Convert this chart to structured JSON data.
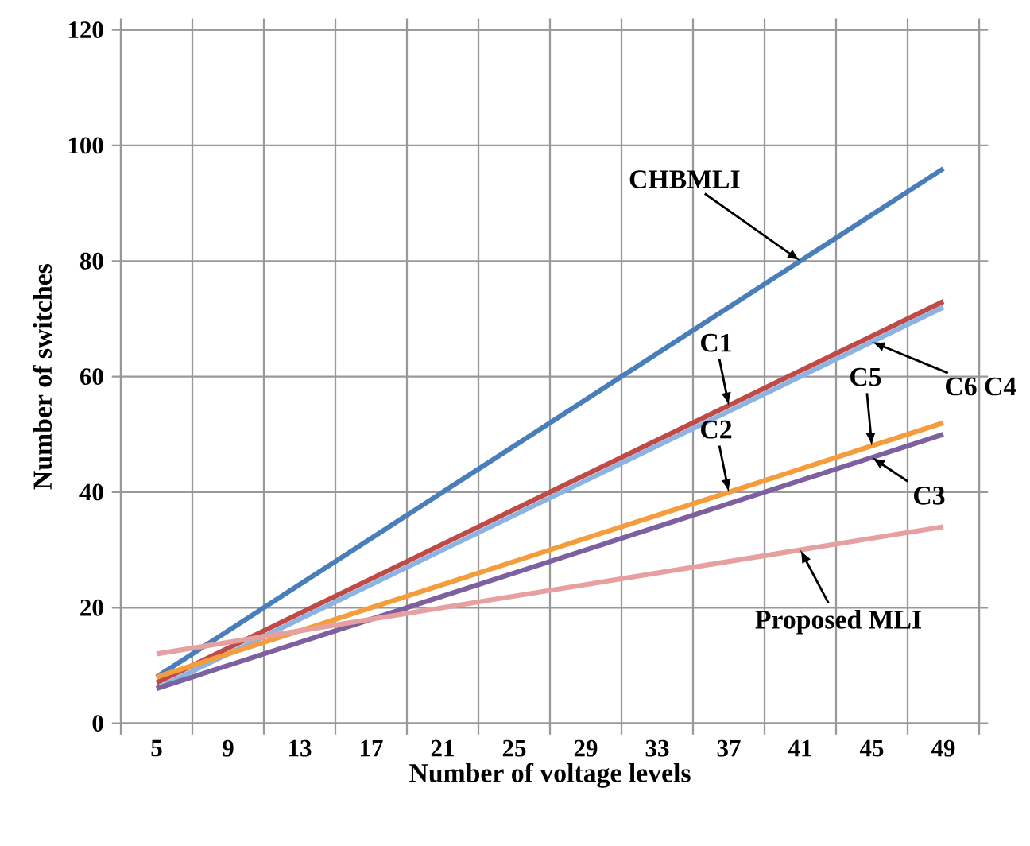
{
  "chart_data": {
    "type": "line",
    "xlabel": "Number of voltage levels",
    "ylabel": "Number of switches",
    "categories": [
      "5",
      "9",
      "13",
      "17",
      "21",
      "25",
      "29",
      "33",
      "37",
      "41",
      "45",
      "49"
    ],
    "series": [
      {
        "color": "#4a7ebb",
        "values": [
          8,
          16,
          24,
          32,
          40,
          48,
          56,
          64,
          72,
          80,
          88,
          96
        ]
      },
      {
        "color": "#be4b48",
        "values": [
          7,
          13,
          19,
          25,
          31,
          37,
          43,
          49,
          55,
          61,
          67,
          73
        ]
      },
      {
        "color": "#8db3e2",
        "values": [
          6,
          12,
          18,
          24,
          30,
          36,
          42,
          48,
          54,
          60,
          66,
          72
        ]
      },
      {
        "color": "#f59d3d",
        "values": [
          8,
          12,
          16,
          20,
          24,
          28,
          32,
          36,
          40,
          44,
          48,
          52
        ]
      },
      {
        "color": "#7d60a0",
        "values": [
          6,
          10,
          14,
          18,
          22,
          26,
          30,
          34,
          38,
          42,
          46,
          50
        ]
      },
      {
        "color": "#e6a0a0",
        "values": [
          12,
          14,
          16,
          18,
          20,
          22,
          24,
          26,
          28,
          30,
          32,
          34
        ]
      }
    ],
    "ylim": [
      0,
      120
    ],
    "yticks": [
      0,
      20,
      40,
      60,
      80,
      100,
      120
    ],
    "grid": true,
    "annotations": [
      {
        "text": "CHBMLI",
        "x": "41",
        "y": 80
      },
      {
        "text": "C1",
        "x": "37",
        "y": 55
      },
      {
        "text": "C6 C4",
        "x": "45",
        "y": 66
      },
      {
        "text": "C5",
        "x": "45",
        "y": 48
      },
      {
        "text": "C2",
        "x": "37",
        "y": 40
      },
      {
        "text": "C3",
        "x": "45",
        "y": 46
      },
      {
        "text": "Proposed MLI",
        "x": "41",
        "y": 30
      }
    ]
  }
}
